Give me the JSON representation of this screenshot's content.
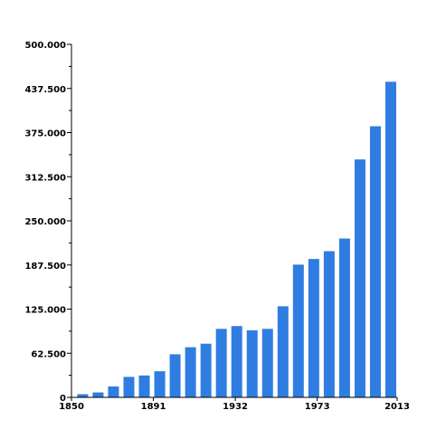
{
  "chart_data": {
    "type": "bar",
    "title": "",
    "xlabel": "",
    "ylabel": "",
    "ylim": [
      0,
      500000
    ],
    "xlim": [
      1850,
      2013
    ],
    "y_ticks": [
      {
        "value": 0,
        "label": "0"
      },
      {
        "value": 62500,
        "label": "62.500"
      },
      {
        "value": 125000,
        "label": "125.000"
      },
      {
        "value": 187500,
        "label": "187.500"
      },
      {
        "value": 250000,
        "label": "250.000"
      },
      {
        "value": 312500,
        "label": "312.500"
      },
      {
        "value": 375000,
        "label": "375.000"
      },
      {
        "value": 437500,
        "label": "437.500"
      },
      {
        "value": 500000,
        "label": "500.000"
      }
    ],
    "x_ticks": [
      {
        "value": 1850,
        "label": "1850"
      },
      {
        "value": 1891,
        "label": "1891"
      },
      {
        "value": 1932,
        "label": "1932"
      },
      {
        "value": 1973,
        "label": "1973"
      },
      {
        "value": 2013,
        "label": "2013"
      }
    ],
    "bar_color": "#2f7de1",
    "values": [
      4500,
      7000,
      15500,
      29000,
      31000,
      37000,
      61000,
      71000,
      76000,
      97000,
      101000,
      95000,
      97000,
      129000,
      188000,
      196000,
      207000,
      225000,
      337000,
      384000,
      447000
    ]
  }
}
